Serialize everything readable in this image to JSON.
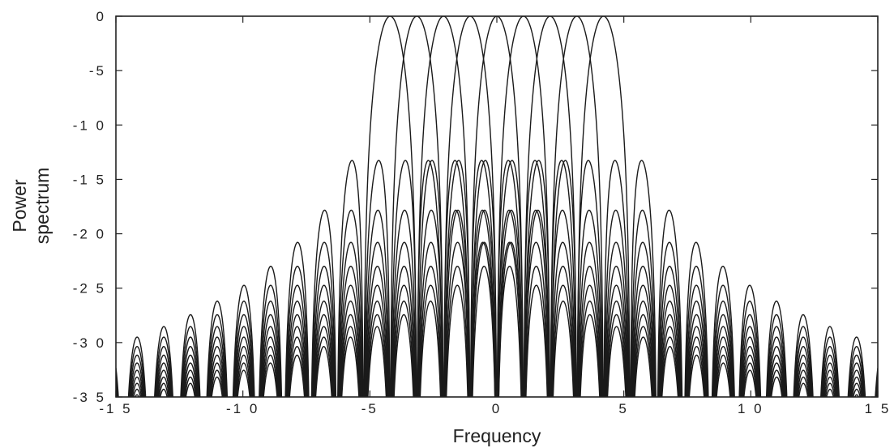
{
  "chart_data": {
    "type": "line",
    "title": "",
    "xlabel": "Frequency",
    "ylabel": [
      "Power",
      "spectrum"
    ],
    "xlim": [
      -15,
      15
    ],
    "ylim": [
      -35,
      0
    ],
    "x_ticks": [
      -15,
      -10,
      -5,
      0,
      5,
      10,
      15
    ],
    "y_ticks": [
      0,
      -5,
      -10,
      -15,
      -20,
      -25,
      -30,
      -35
    ],
    "x_tick_labels": [
      "-1 5",
      "-1 0",
      "-5",
      "0",
      "5",
      "1 0",
      "1 5"
    ],
    "y_tick_labels": [
      "0",
      "-5",
      "-1 0",
      "-1 5",
      "-2 0",
      "-2 5",
      "-3 0",
      "-3 5"
    ],
    "grid": false,
    "legend": "none",
    "line_color": "#1a1a1a",
    "subcarrier_spacing": 1.05,
    "series": [
      {
        "center": -4.2
      },
      {
        "center": -3.15
      },
      {
        "center": -2.1
      },
      {
        "center": -1.05
      },
      {
        "center": 0.0
      },
      {
        "center": 1.05
      },
      {
        "center": 2.1
      },
      {
        "center": 3.15
      },
      {
        "center": 4.2
      }
    ]
  }
}
